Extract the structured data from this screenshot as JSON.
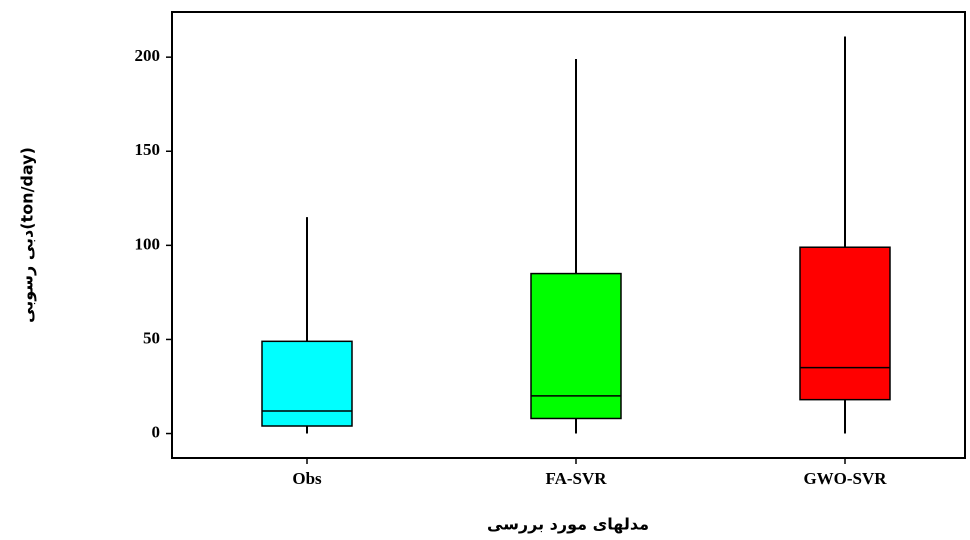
{
  "chart_data": {
    "type": "box",
    "y_label": "دبی رسوبی(ton/day)",
    "x_label": "مدلهای مورد بررسی",
    "categories": [
      "Obs",
      "FA-SVR",
      "GWO-SVR"
    ],
    "boxes": [
      {
        "min": 0,
        "q1": 4,
        "median": 12,
        "q3": 49,
        "max": 115,
        "color": "#00ffff"
      },
      {
        "min": 0,
        "q1": 8,
        "median": 20,
        "q3": 85,
        "max": 199,
        "color": "#00ff00"
      },
      {
        "min": 0,
        "q1": 18,
        "median": 35,
        "q3": 99,
        "max": 211,
        "color": "#ff0000"
      }
    ],
    "ylim": [
      -13,
      224
    ],
    "yticks": [
      0,
      50,
      100,
      150,
      200
    ]
  }
}
